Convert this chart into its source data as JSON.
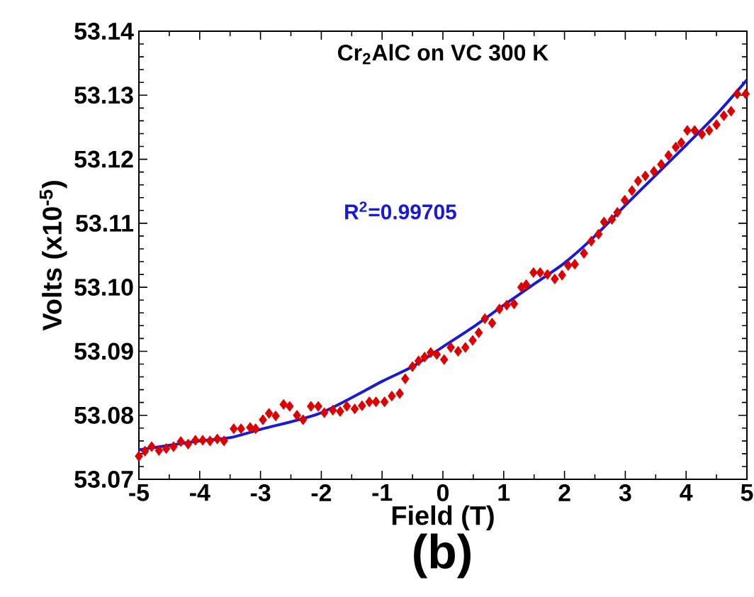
{
  "chart_data": {
    "type": "scatter",
    "title": "Cr$_{2}$AlC on VC 300 K",
    "xlabel": "Field (T)",
    "ylabel": "Volts (x10$^{-5}$)",
    "annotations": [
      "R$^{2}$=0.99705",
      "(b)"
    ],
    "xlim": [
      -5,
      5
    ],
    "xticks": [
      -5,
      -4,
      -3,
      -2,
      -1,
      0,
      1,
      2,
      3,
      4,
      5
    ],
    "ylim": [
      53.07,
      53.14
    ],
    "yticks": [
      {
        "value": 53.07,
        "label": "53.07"
      },
      {
        "value": 53.08,
        "label": "53.08"
      },
      {
        "value": 53.09,
        "label": "53.09"
      },
      {
        "value": 53.1,
        "label": "53.10"
      },
      {
        "value": 53.11,
        "label": "53.11"
      },
      {
        "value": 53.12,
        "label": "53.12"
      },
      {
        "value": 53.13,
        "label": "53.13"
      },
      {
        "value": 53.14,
        "label": "53.14"
      }
    ],
    "series": [
      {
        "marker": "diamond",
        "color": "#dd0000",
        "x": [
          -5,
          -4.9,
          -4.79,
          -4.67,
          -4.55,
          -4.43,
          -4.31,
          -4.19,
          -4.07,
          -3.95,
          -3.83,
          -3.71,
          -3.6,
          -3.44,
          -3.32,
          -3.17,
          -3.08,
          -2.96,
          -2.86,
          -2.75,
          -2.62,
          -2.52,
          -2.4,
          -2.3,
          -2.17,
          -2.05,
          -1.95,
          -1.81,
          -1.69,
          -1.58,
          -1.45,
          -1.33,
          -1.21,
          -1.1,
          -0.96,
          -0.84,
          -0.71,
          -0.62,
          -0.5,
          -0.4,
          -0.3,
          -0.2,
          -0.1,
          0.02,
          0.13,
          0.25,
          0.37,
          0.49,
          0.59,
          0.69,
          0.81,
          0.93,
          1.05,
          1.17,
          1.29,
          1.37,
          1.49,
          1.6,
          1.72,
          1.84,
          1.96,
          2.06,
          2.17,
          2.32,
          2.44,
          2.56,
          2.65,
          2.78,
          2.87,
          2.99,
          3.11,
          3.21,
          3.33,
          3.47,
          3.59,
          3.71,
          3.83,
          3.92,
          4.02,
          4.14,
          4.26,
          4.38,
          4.5,
          4.62,
          4.74,
          4.84,
          4.98
        ],
        "values": [
          53.0736,
          53.0744,
          53.0751,
          53.0745,
          53.0748,
          53.0751,
          53.0759,
          53.0755,
          53.0761,
          53.0761,
          53.076,
          53.0763,
          53.076,
          53.0779,
          53.0779,
          53.0781,
          53.0779,
          53.0793,
          53.0803,
          53.0799,
          53.0817,
          53.0814,
          53.08,
          53.0793,
          53.0814,
          53.0814,
          53.0804,
          53.0808,
          53.0806,
          53.0814,
          53.081,
          53.0815,
          53.0821,
          53.0821,
          53.0821,
          53.083,
          53.0834,
          53.0857,
          53.0876,
          53.0885,
          53.0891,
          53.0898,
          53.0895,
          53.0887,
          53.0906,
          53.09,
          53.0906,
          53.0917,
          53.0929,
          53.0951,
          53.0944,
          53.0966,
          53.0972,
          53.0974,
          53.1,
          53.1004,
          53.1023,
          53.1023,
          53.102,
          53.1013,
          53.1019,
          53.1034,
          53.1036,
          53.1053,
          53.1072,
          53.1083,
          53.1102,
          53.1106,
          53.1117,
          53.1136,
          53.1151,
          53.1166,
          53.1174,
          53.1181,
          53.1192,
          53.1206,
          53.1219,
          53.1226,
          53.1245,
          53.1245,
          53.1239,
          53.1245,
          53.1254,
          53.1268,
          53.1275,
          53.1302,
          53.1302
        ]
      },
      {
        "type": "line",
        "color": "#1a1ad6",
        "x": [
          -5,
          -4,
          -3.5,
          -3,
          -2,
          -1,
          -0.5,
          0,
          0.5,
          1,
          1.5,
          2,
          2.5,
          3,
          3.5,
          4,
          4.5,
          5
        ],
        "values": [
          53.0746,
          53.076,
          53.0765,
          53.0778,
          53.0804,
          53.0853,
          53.0876,
          53.0907,
          53.0938,
          53.0972,
          53.1005,
          53.1038,
          53.108,
          53.1128,
          53.1175,
          53.1222,
          53.127,
          53.1324
        ]
      }
    ]
  }
}
